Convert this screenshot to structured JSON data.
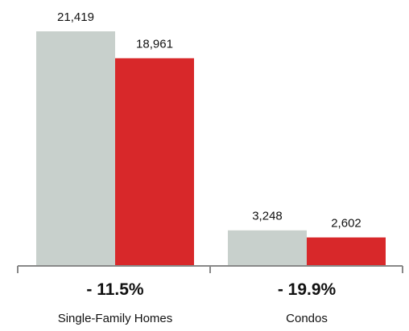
{
  "chart_data": {
    "type": "bar",
    "categories": [
      "Single-Family Homes",
      "Condos"
    ],
    "series": [
      {
        "values": [
          21419,
          3248
        ],
        "color": "#c8d0cc"
      },
      {
        "values": [
          18961,
          2602
        ],
        "color": "#d8282a"
      }
    ],
    "value_labels": [
      [
        "21,419",
        "3,248"
      ],
      [
        "18,961",
        "2,602"
      ]
    ],
    "change_labels": [
      "- 11.5%",
      "- 19.9%"
    ],
    "ylim": [
      0,
      21419
    ],
    "grid": false,
    "legend": "none"
  },
  "colors": {
    "axis": "#888888",
    "text": "#111111"
  }
}
